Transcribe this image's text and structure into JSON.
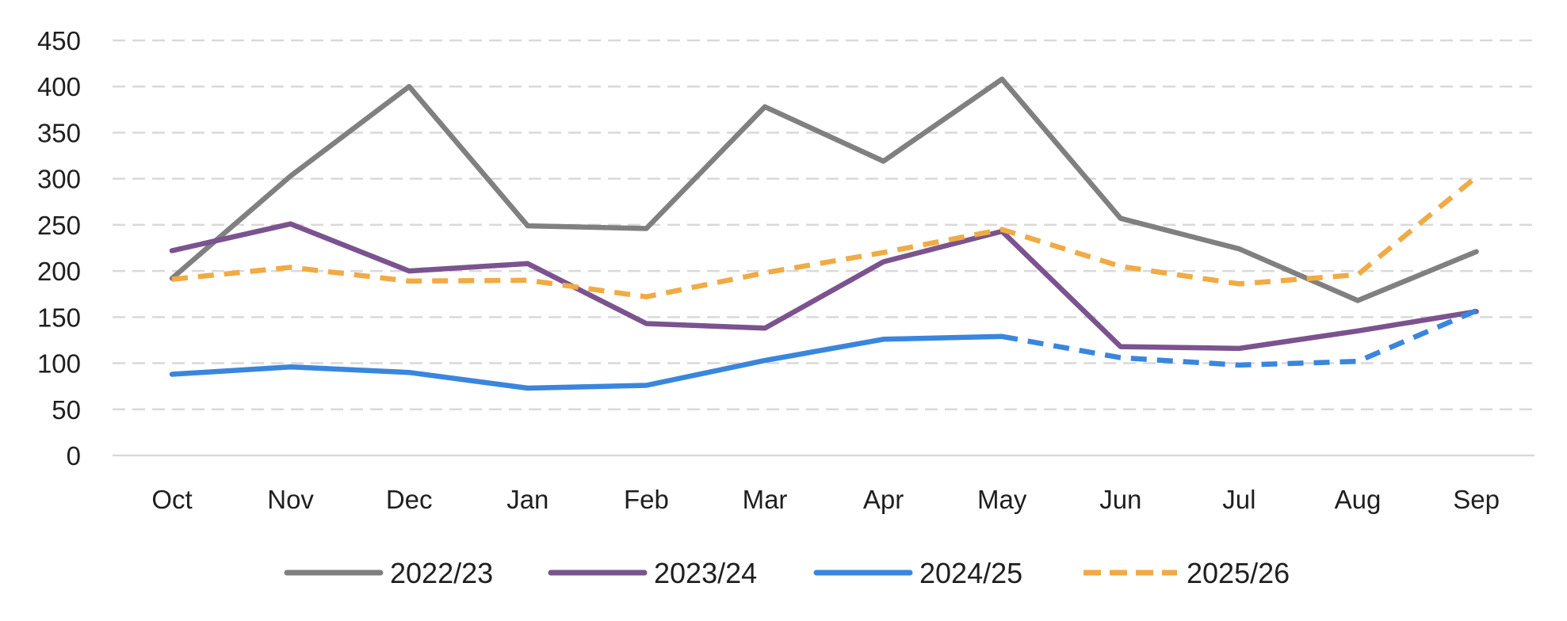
{
  "chart_data": {
    "type": "line",
    "title": "",
    "xlabel": "",
    "ylabel": "",
    "categories": [
      "Oct",
      "Nov",
      "Dec",
      "Jan",
      "Feb",
      "Mar",
      "Apr",
      "May",
      "Jun",
      "Jul",
      "Aug",
      "Sep"
    ],
    "ylim": [
      0,
      450
    ],
    "yticks": [
      0,
      50,
      100,
      150,
      200,
      250,
      300,
      350,
      400,
      450
    ],
    "grid": "horizontal dashed",
    "legend_position": "bottom",
    "series": [
      {
        "name": "2022/23",
        "color": "#808080",
        "style": "solid",
        "values": [
          192,
          303,
          400,
          249,
          246,
          378,
          319,
          408,
          257,
          224,
          168,
          221
        ]
      },
      {
        "name": "2023/24",
        "color": "#7b538f",
        "style": "solid",
        "values": [
          222,
          251,
          200,
          208,
          143,
          138,
          210,
          243,
          118,
          116,
          135,
          156
        ]
      },
      {
        "name": "2024/25",
        "color": "#3a86dd",
        "style": "solid through May, dashed Jun–Sep",
        "solid_through_index": 7,
        "values": [
          88,
          96,
          90,
          73,
          76,
          103,
          126,
          129,
          106,
          98,
          102,
          157
        ]
      },
      {
        "name": "2025/26",
        "color": "#f0ab45",
        "style": "dashed",
        "values": [
          191,
          204,
          189,
          190,
          172,
          198,
          220,
          245,
          205,
          186,
          196,
          302
        ]
      }
    ]
  }
}
